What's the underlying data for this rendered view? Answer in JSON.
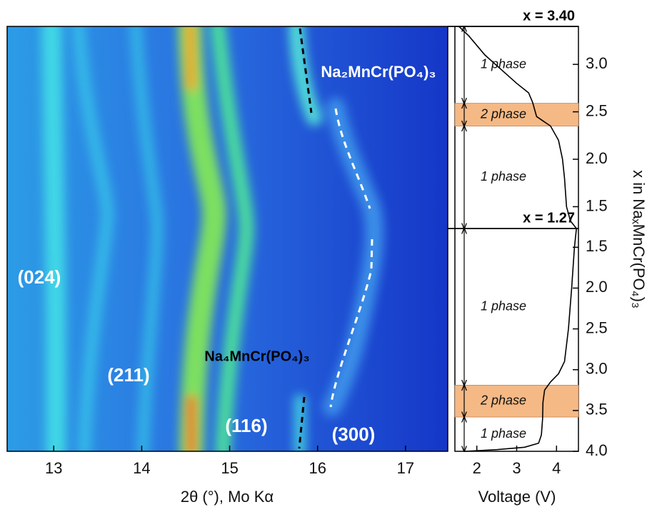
{
  "chart_data": [
    {
      "type": "heatmap",
      "xlabel": "2θ (°), Mo Kα",
      "xlim": [
        12.47,
        17.48
      ],
      "xticks": [
        13,
        14,
        15,
        16,
        17
      ],
      "annotations": [
        "(024)",
        "(211)",
        "(116)",
        "(300)",
        "Na₂MnCr(PO₄)₃",
        "Na₄MnCr(PO₄)₃"
      ]
    },
    {
      "type": "line",
      "xlabel": "Voltage (V)",
      "ylabel": "x in NaₓMnCr(PO₄)₃",
      "xlim": [
        1.45,
        4.55
      ],
      "xticks": [
        2,
        3,
        4
      ],
      "color": "#000000",
      "panels": [
        {
          "ylim": [
            1.27,
            3.4
          ],
          "yticks": [
            1.5,
            {
              "value": 2,
              "label": "2.0"
            },
            2.5,
            {
              "value": 3,
              "label": "3.0"
            }
          ],
          "markers": [
            {
              "value": 3.4,
              "label": "x = 3.40"
            },
            {
              "value": 1.27,
              "label": "x = 1.27"
            }
          ],
          "regions": [
            {
              "range": [
                1.27,
                2.35
              ],
              "label": "1 phase"
            },
            {
              "range": [
                2.35,
                2.59
              ],
              "label": "2 phase",
              "color": "#f5b985"
            },
            {
              "range": [
                2.59,
                3.4
              ],
              "label": "1 phase"
            }
          ],
          "series": [
            {
              "x": [
                4.5,
                4.35,
                4.25,
                4.2,
                4.15,
                4.05,
                3.85,
                3.5,
                3.4,
                3.3,
                3.0,
                2.6,
                2.2,
                1.8,
                1.55
              ],
              "y": [
                1.27,
                1.35,
                1.5,
                1.8,
                2.0,
                2.2,
                2.35,
                2.45,
                2.6,
                2.7,
                2.8,
                2.95,
                3.1,
                3.3,
                3.4
              ]
            }
          ]
        },
        {
          "ylim": [
            4,
            1.27
          ],
          "yticks": [
            1.5,
            {
              "value": 2,
              "label": "2.0"
            },
            2.5,
            {
              "value": 3,
              "label": "3.0"
            },
            3.5,
            {
              "value": 4,
              "label": "4.0"
            }
          ],
          "markers": [],
          "regions": [
            {
              "range": [
                3.58,
                4
              ],
              "label": "1 phase"
            },
            {
              "range": [
                3.19,
                3.58
              ],
              "label": "2 phase",
              "color": "#f5b985"
            },
            {
              "range": [
                1.27,
                3.19
              ],
              "label": "1 phase"
            }
          ],
          "series": [
            {
              "x": [
                1.7,
                2.5,
                3.2,
                3.55,
                3.62,
                3.65,
                3.66,
                3.7,
                3.85,
                4.05,
                4.2,
                4.3,
                4.38,
                4.45,
                4.5
              ],
              "y": [
                4.0,
                3.98,
                3.95,
                3.9,
                3.8,
                3.6,
                3.4,
                3.25,
                3.15,
                3.05,
                2.9,
                2.5,
                2.0,
                1.5,
                1.27
              ]
            }
          ]
        }
      ]
    }
  ]
}
